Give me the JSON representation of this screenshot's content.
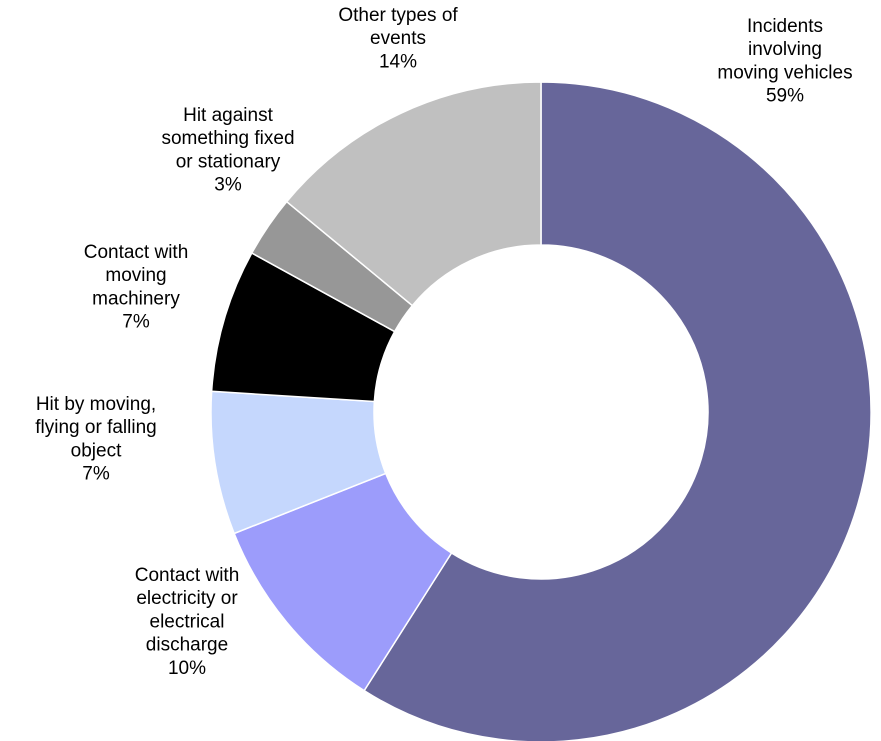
{
  "chart_data": {
    "type": "pie",
    "variant": "donut",
    "title": "",
    "legend": "none",
    "categories": [
      "Incidents involving moving vehicles",
      "Contact with electricity or electrical discharge",
      "Hit by moving, flying or falling object",
      "Contact with moving machinery",
      "Hit against something fixed or stationary",
      "Other types of events"
    ],
    "values": [
      59,
      10,
      7,
      7,
      3,
      14
    ],
    "value_labels": [
      "59%",
      "10%",
      "7%",
      "7%",
      "3%",
      "14%"
    ],
    "label_lines": [
      [
        "Incidents",
        "involving",
        "moving vehicles"
      ],
      [
        "Contact with",
        "electricity or",
        "electrical",
        "discharge"
      ],
      [
        "Hit by moving,",
        "flying or falling",
        "object"
      ],
      [
        "Contact with",
        "moving",
        "machinery"
      ],
      [
        "Hit against",
        "something fixed",
        "or stationary"
      ],
      [
        "Other types of",
        "events"
      ]
    ],
    "colors": [
      "#67669a",
      "#9c9cfb",
      "#c5d7fd",
      "#000000",
      "#979797",
      "#c0c0c0"
    ]
  }
}
